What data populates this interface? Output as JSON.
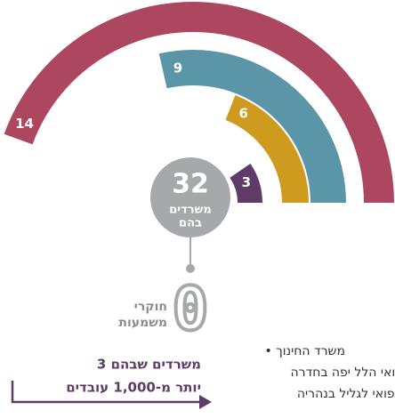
{
  "chart_data": {
    "type": "radial_bar",
    "series": [
      {
        "name": null,
        "values": [
          14
        ],
        "color": "#ad4760"
      },
      {
        "name": null,
        "values": [
          9
        ],
        "color": "#5a96a8"
      },
      {
        "name": null,
        "values": [
          6
        ],
        "color": "#cf9b1f"
      },
      {
        "name": null,
        "values": [
          3
        ],
        "color": "#5e3c67"
      }
    ],
    "center": {
      "value": 32,
      "label_lines": [
        "משרדים",
        "בהם"
      ],
      "color": "#a6a8ab"
    },
    "zero": {
      "value": 0,
      "label_lines": [
        "חוקרי",
        "משמעות"
      ]
    },
    "note_lines": [
      "3 משרדים שבהם",
      "יותר מ-1,000 עובדים"
    ],
    "side_text_lines": [
      "• משרד החינוך",
      "הרפואי הלל יפה בחדרה",
      "ז הרפואי לגליל בנהריה"
    ]
  }
}
